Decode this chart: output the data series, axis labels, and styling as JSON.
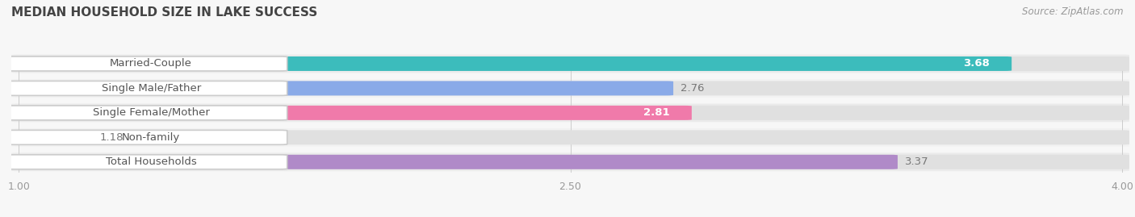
{
  "title": "MEDIAN HOUSEHOLD SIZE IN LAKE SUCCESS",
  "source": "Source: ZipAtlas.com",
  "categories": [
    "Married-Couple",
    "Single Male/Father",
    "Single Female/Mother",
    "Non-family",
    "Total Households"
  ],
  "values": [
    3.68,
    2.76,
    2.81,
    1.18,
    3.37
  ],
  "bar_colors": [
    "#3cbcbc",
    "#8aaae8",
    "#f07aaa",
    "#f5c99a",
    "#b08ac8"
  ],
  "xlim_min": 1.0,
  "xlim_max": 4.0,
  "xticks": [
    1.0,
    2.5,
    4.0
  ],
  "background_color": "#f7f7f7",
  "bar_bg_color": "#e8e8e8",
  "bar_row_bg": "#efefef",
  "title_fontsize": 11,
  "bar_height": 0.55,
  "label_fontsize": 9.5,
  "value_fontsize": 9.5,
  "value_label_inside": [
    true,
    false,
    true,
    false,
    false
  ],
  "source_fontsize": 8.5
}
